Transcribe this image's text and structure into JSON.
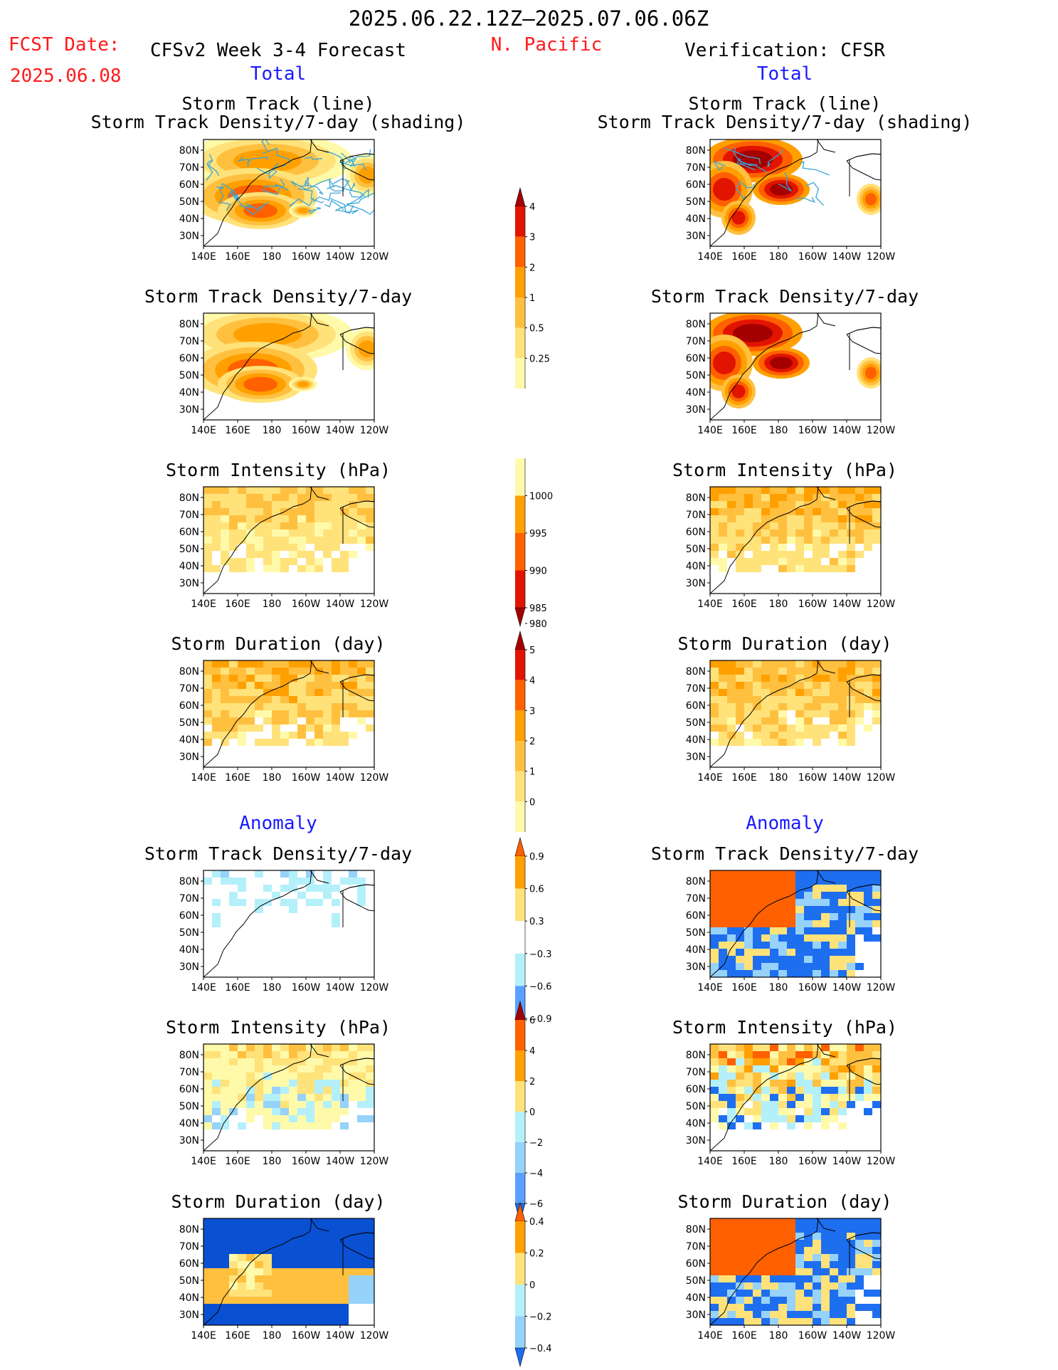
{
  "header": {
    "period": "2025.06.22.12Z–2025.07.06.06Z",
    "region": "N. Pacific",
    "fcst_label": "FCST Date:",
    "fcst_date": "2025.06.08",
    "left_title": "CFSv2 Week 3-4 Forecast",
    "right_title": "Verification: CFSR"
  },
  "sections": {
    "total": "Total",
    "anomaly": "Anomaly"
  },
  "titles": {
    "storm_track_line": "Storm Track (line)",
    "storm_track_shading": "Storm Track Density/7-day (shading)",
    "storm_track_density": "Storm Track Density/7-day",
    "storm_intensity": "Storm Intensity (hPa)",
    "storm_duration": "Storm Duration (day)"
  },
  "axes": {
    "lon": [
      "140E",
      "160E",
      "180",
      "160W",
      "140W",
      "120W"
    ],
    "lat": [
      "80N",
      "70N",
      "60N",
      "50N",
      "40N",
      "30N"
    ]
  },
  "colorbars": {
    "density_total": [
      "4",
      "3",
      "2",
      "1",
      "0.5",
      "0.25"
    ],
    "intensity_total": [
      "1000",
      "995",
      "990",
      "985",
      "980"
    ],
    "duration_total": [
      "5",
      "4",
      "3",
      "2",
      "1",
      "0"
    ],
    "density_anom": [
      "0.9",
      "0.6",
      "0.3",
      "−0.3",
      "−0.6",
      "−0.9"
    ],
    "intensity_anom": [
      "6",
      "4",
      "2",
      "0",
      "−2",
      "−4",
      "−6"
    ],
    "duration_anom": [
      "0.4",
      "0.2",
      "0",
      "−0.2",
      "−0.4"
    ]
  },
  "colors": {
    "warm": [
      "#fffaaa",
      "#ffe27a",
      "#ffc040",
      "#ffa000",
      "#ff6000",
      "#e11400",
      "#a50000"
    ],
    "cool": [
      "#b4f0fa",
      "#96d2fa",
      "#5aa0ff",
      "#1e6ef0",
      "#0a50d2"
    ],
    "title_red": "#ff1a1a",
    "title_blue": "#1a1aff"
  }
}
